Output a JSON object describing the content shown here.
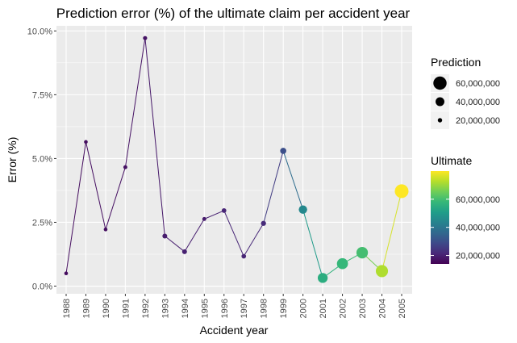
{
  "chart_data": {
    "type": "scatter",
    "title": "Prediction error (%) of the ultimate claim per accident year",
    "xlabel": "Accident year",
    "ylabel": "Error (%)",
    "x": [
      "1988",
      "1989",
      "1990",
      "1991",
      "1992",
      "1993",
      "1994",
      "1995",
      "1996",
      "1997",
      "1998",
      "1999",
      "2000",
      "2001",
      "2002",
      "2003",
      "2004",
      "2005"
    ],
    "y": [
      0.5,
      5.65,
      2.22,
      4.66,
      9.72,
      1.96,
      1.35,
      2.63,
      2.96,
      1.17,
      2.46,
      5.3,
      3.0,
      0.32,
      0.88,
      1.31,
      0.59,
      3.72
    ],
    "prediction": [
      17000000,
      17000000,
      17000000,
      18000000,
      19000000,
      22000000,
      22000000,
      18000000,
      21000000,
      21000000,
      23000000,
      28000000,
      38000000,
      45000000,
      50000000,
      52000000,
      55000000,
      62000000
    ],
    "ultimate": [
      16000000,
      16500000,
      16500000,
      17000000,
      17500000,
      19000000,
      20000000,
      19000000,
      21000000,
      21000000,
      22000000,
      30000000,
      45000000,
      55000000,
      58000000,
      60000000,
      72000000,
      80000000
    ],
    "ylim": [
      -0.3,
      10.2
    ],
    "yticks": [
      0,
      2.5,
      5,
      7.5,
      10
    ],
    "ytick_labels": [
      "0.0%",
      "2.5%",
      "5.0%",
      "7.5%",
      "10.0%"
    ],
    "grid": true,
    "legend_placement": "right",
    "legends": {
      "size": {
        "title": "Prediction",
        "entries": [
          {
            "label": "60,000,000",
            "value": 60000000
          },
          {
            "label": "40,000,000",
            "value": 40000000
          },
          {
            "label": "20,000,000",
            "value": 20000000
          }
        ]
      },
      "color": {
        "title": "Ultimate",
        "labels": [
          "60,000,000",
          "40,000,000",
          "20,000,000"
        ],
        "values": [
          60000000,
          40000000,
          20000000
        ],
        "range": [
          14000000,
          80000000
        ]
      }
    },
    "colors": {
      "panel_bg": "#ebebeb",
      "grid": "#ffffff",
      "viridis": [
        "#440154",
        "#482878",
        "#3e4989",
        "#31688e",
        "#26828e",
        "#1f9e89",
        "#35b779",
        "#6ece58",
        "#b5de2b",
        "#fde725"
      ]
    }
  }
}
